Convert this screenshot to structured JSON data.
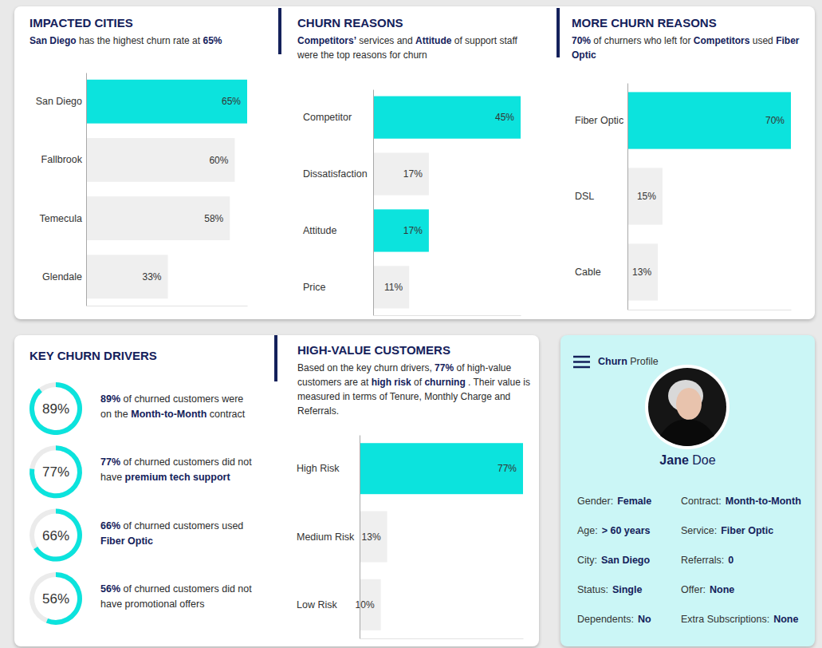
{
  "chart_data": [
    {
      "type": "bar",
      "orientation": "horizontal",
      "title": "IMPACTED CITIES",
      "subtitle": [
        {
          "text": "San Diego",
          "strong": true
        },
        {
          "text": " has the highest churn rate at "
        },
        {
          "text": "65%",
          "strong": true
        }
      ],
      "categories": [
        "San Diego",
        "Fallbrook",
        "Temecula",
        "Glendale"
      ],
      "values": [
        65,
        60,
        58,
        33
      ],
      "value_labels": [
        "65%",
        "60%",
        "58%",
        "33%"
      ],
      "colors": [
        "#0ce3dd",
        "#efefef",
        "#efefef",
        "#efefef"
      ],
      "xlim": [
        0,
        65
      ],
      "data_labels": true,
      "tick_labels": "y"
    },
    {
      "type": "bar",
      "orientation": "horizontal",
      "title": "CHURN REASONS",
      "subtitle": [
        {
          "text": "Competitors’",
          "strong": true
        },
        {
          "text": " services and "
        },
        {
          "text": "Attitude",
          "strong": true
        },
        {
          "text": " of support staff were the top reasons for churn"
        }
      ],
      "categories": [
        "Competitor",
        "Dissatisfaction",
        "Attitude",
        "Price"
      ],
      "values": [
        45,
        17,
        17,
        11
      ],
      "value_labels": [
        "45%",
        "17%",
        "17%",
        "11%"
      ],
      "colors": [
        "#0ce3dd",
        "#efefef",
        "#0ce3dd",
        "#efefef"
      ],
      "xlim": [
        0,
        45
      ],
      "data_labels": true,
      "tick_labels": "y"
    },
    {
      "type": "bar",
      "orientation": "horizontal",
      "title": "MORE CHURN REASONS",
      "subtitle": [
        {
          "text": "70%",
          "strong": true
        },
        {
          "text": " of churners who left for "
        },
        {
          "text": "Competitors",
          "strong": true
        },
        {
          "text": " used "
        },
        {
          "text": "Fiber Optic",
          "strong": true
        }
      ],
      "categories": [
        "Fiber Optic",
        "DSL",
        "Cable"
      ],
      "values": [
        70,
        15,
        13
      ],
      "value_labels": [
        "70%",
        "15%",
        "13%"
      ],
      "colors": [
        "#0ce3dd",
        "#efefef",
        "#efefef"
      ],
      "xlim": [
        0,
        70
      ],
      "data_labels": true,
      "tick_labels": "y"
    },
    {
      "type": "gauge",
      "title": "KEY CHURN DRIVERS",
      "values": [
        89,
        77,
        66,
        56
      ],
      "value_labels": [
        "89%",
        "77%",
        "66%",
        "56%"
      ],
      "descriptions": [
        [
          {
            "text": " of churned customers were on the "
          },
          {
            "text": "Month-to-Month",
            "strong": true
          },
          {
            "text": " contract"
          }
        ],
        [
          {
            "text": " of churned customers did not have "
          },
          {
            "text": "premium tech support",
            "strong": true
          }
        ],
        [
          {
            "text": " of churned customers used "
          },
          {
            "text": "Fiber Optic",
            "strong": true
          }
        ],
        [
          {
            "text": " of churned customers did not have promotional offers"
          }
        ]
      ],
      "ylim": [
        0,
        100
      ],
      "color": "#0ce3dd",
      "data_labels": true
    },
    {
      "type": "bar",
      "orientation": "horizontal",
      "title": "HIGH-VALUE CUSTOMERS",
      "subtitle": [
        {
          "text": "Based on the key churn drivers, "
        },
        {
          "text": "77%",
          "strong": true
        },
        {
          "text": " of high-value customers are at "
        },
        {
          "text": "high risk",
          "strong": true
        },
        {
          "text": " of "
        },
        {
          "text": "churning",
          "strong": true
        },
        {
          "text": " . Their value is measured in terms of Tenure, Monthly Charge and Referrals."
        }
      ],
      "categories": [
        "High Risk",
        "Medium Risk",
        "Low Risk"
      ],
      "values": [
        77,
        13,
        10
      ],
      "value_labels": [
        "77%",
        "13%",
        "10%"
      ],
      "colors": [
        "#0ce3dd",
        "#efefef",
        "#efefef"
      ],
      "xlim": [
        0,
        77
      ],
      "data_labels": true,
      "tick_labels": "y"
    }
  ],
  "profile": {
    "heading": [
      {
        "text": "Churn",
        "strong": true
      },
      {
        "text": " Profile"
      }
    ],
    "name": [
      {
        "text": "Jane",
        "strong": true
      },
      {
        "text": " Doe"
      }
    ],
    "fields": [
      {
        "label": "Gender:",
        "value": "Female"
      },
      {
        "label": "Contract:",
        "value": "Month-to-Month"
      },
      {
        "label": "Age:",
        "value": "> 60 years"
      },
      {
        "label": "Service:",
        "value": "Fiber Optic"
      },
      {
        "label": "City:",
        "value": "San Diego"
      },
      {
        "label": "Referrals:",
        "value": 0
      },
      {
        "label": "Status:",
        "value": "Single"
      },
      {
        "label": "Offer:",
        "value": "None"
      },
      {
        "label": "Dependents:",
        "value": "No"
      },
      {
        "label": "Extra Subscriptions:",
        "value": "None"
      }
    ]
  }
}
